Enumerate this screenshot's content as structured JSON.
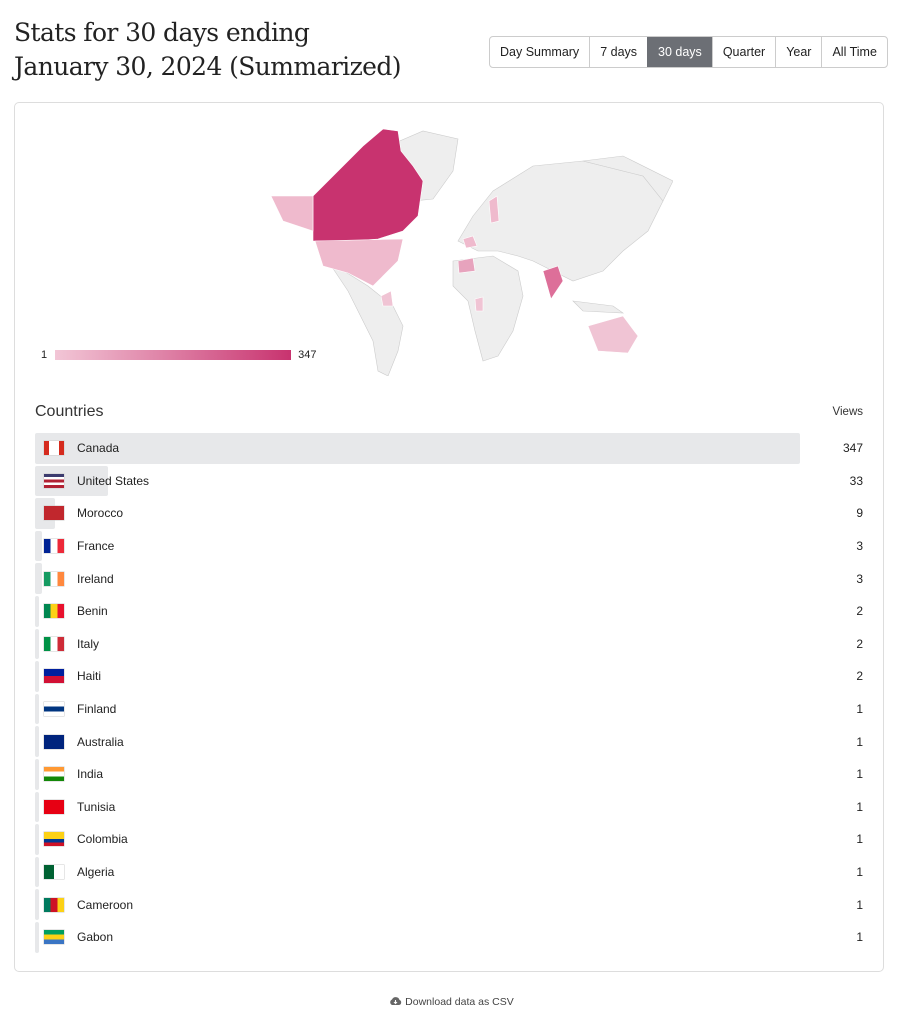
{
  "title_line1": "Stats for 30 days ending",
  "title_line2": "January 30, 2024 (Summarized)",
  "ranges": [
    {
      "label": "Day Summary",
      "active": false
    },
    {
      "label": "7 days",
      "active": false
    },
    {
      "label": "30 days",
      "active": true
    },
    {
      "label": "Quarter",
      "active": false
    },
    {
      "label": "Year",
      "active": false
    },
    {
      "label": "All Time",
      "active": false
    }
  ],
  "map": {
    "legend_min": "1",
    "legend_max": "347",
    "color_low": "#f2c6d6",
    "color_high": "#c8336f",
    "no_data_color": "#eeeeee"
  },
  "table": {
    "heading": "Countries",
    "views_label": "Views",
    "rows": [
      {
        "country": "Canada",
        "views": 347,
        "flag": {
          "dir": "row",
          "colors": [
            "#d52b1e",
            "#fff",
            "#fff",
            "#d52b1e"
          ]
        }
      },
      {
        "country": "United States",
        "views": 33,
        "flag": {
          "dir": "col",
          "colors": [
            "#3c3b6e",
            "#fff",
            "#b22234",
            "#fff",
            "#b22234"
          ]
        }
      },
      {
        "country": "Morocco",
        "views": 9,
        "flag": {
          "dir": "row",
          "colors": [
            "#c1272d"
          ]
        }
      },
      {
        "country": "France",
        "views": 3,
        "flag": {
          "dir": "row",
          "colors": [
            "#002395",
            "#fff",
            "#ed2939"
          ]
        }
      },
      {
        "country": "Ireland",
        "views": 3,
        "flag": {
          "dir": "row",
          "colors": [
            "#169b62",
            "#fff",
            "#ff883e"
          ]
        }
      },
      {
        "country": "Benin",
        "views": 2,
        "flag": {
          "dir": "row",
          "colors": [
            "#008751",
            "#fcd116",
            "#e8112d"
          ]
        }
      },
      {
        "country": "Italy",
        "views": 2,
        "flag": {
          "dir": "row",
          "colors": [
            "#009246",
            "#fff",
            "#ce2b37"
          ]
        }
      },
      {
        "country": "Haiti",
        "views": 2,
        "flag": {
          "dir": "col",
          "colors": [
            "#00209f",
            "#d21034"
          ]
        }
      },
      {
        "country": "Finland",
        "views": 1,
        "flag": {
          "dir": "col",
          "colors": [
            "#fff",
            "#003580",
            "#fff"
          ]
        }
      },
      {
        "country": "Australia",
        "views": 1,
        "flag": {
          "dir": "row",
          "colors": [
            "#00247d",
            "#00247d"
          ]
        }
      },
      {
        "country": "India",
        "views": 1,
        "flag": {
          "dir": "col",
          "colors": [
            "#ff9933",
            "#fff",
            "#138808"
          ]
        }
      },
      {
        "country": "Tunisia",
        "views": 1,
        "flag": {
          "dir": "row",
          "colors": [
            "#e70013"
          ]
        }
      },
      {
        "country": "Colombia",
        "views": 1,
        "flag": {
          "dir": "col",
          "colors": [
            "#fcd116",
            "#fcd116",
            "#003893",
            "#ce1126"
          ]
        }
      },
      {
        "country": "Algeria",
        "views": 1,
        "flag": {
          "dir": "row",
          "colors": [
            "#006233",
            "#fff"
          ]
        }
      },
      {
        "country": "Cameroon",
        "views": 1,
        "flag": {
          "dir": "row",
          "colors": [
            "#007a5e",
            "#ce1126",
            "#fcd116"
          ]
        }
      },
      {
        "country": "Gabon",
        "views": 1,
        "flag": {
          "dir": "col",
          "colors": [
            "#009e60",
            "#fcd116",
            "#3a75c4"
          ]
        }
      }
    ]
  },
  "download_label": "Download data as CSV"
}
